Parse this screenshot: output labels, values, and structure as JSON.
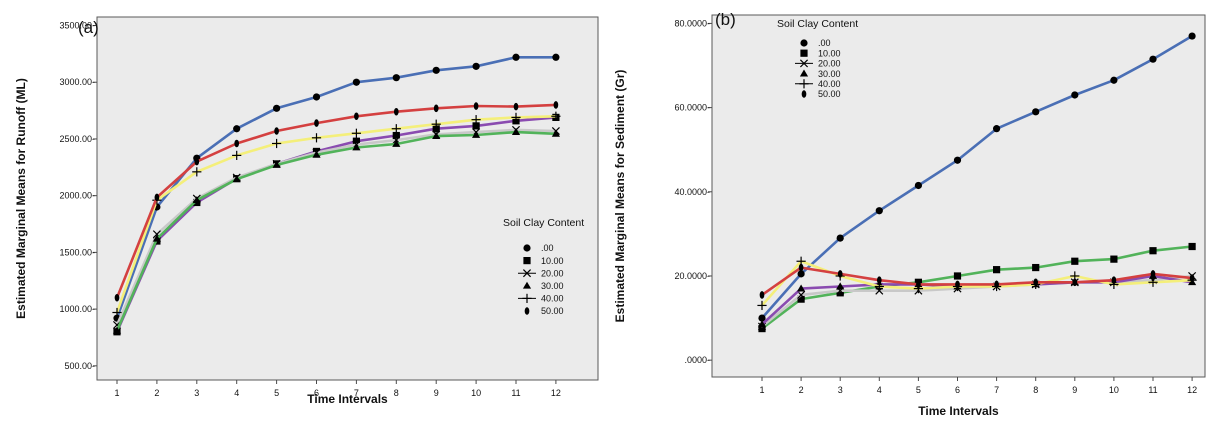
{
  "legend_labels": [
    ".00",
    "10.00",
    "20.00",
    "30.00",
    "40.00",
    "50.00"
  ],
  "chart_data": [
    {
      "type": "line",
      "panel_label": "(a)",
      "title": "",
      "xlabel": "Time Intervals",
      "ylabel": "Estimated Marginal Means for Runoff (ML)",
      "categories": [
        "1",
        "2",
        "3",
        "4",
        "5",
        "6",
        "7",
        "8",
        "9",
        "10",
        "11",
        "12"
      ],
      "ylim": [
        375,
        3575
      ],
      "yticks": [
        500,
        1000,
        1500,
        2000,
        2500,
        3000,
        3500
      ],
      "ytick_labels": [
        "500.00-",
        "1000.00-",
        "1500.00-",
        "2000.00-",
        "2500.00-",
        "3000.00-",
        "3500.00-"
      ],
      "legend_title": "Soil Clay Content",
      "legend_position": "right",
      "grid": false,
      "series": [
        {
          "name": ".00",
          "marker": "circle",
          "color": "#4a6fb5",
          "values": [
            920,
            1900,
            2330,
            2590,
            2770,
            2870,
            3000,
            3040,
            3105,
            3140,
            3220,
            3220
          ]
        },
        {
          "name": "10.00",
          "marker": "square",
          "color": "#8a4bb0",
          "values": [
            800,
            1600,
            1940,
            2150,
            2280,
            2390,
            2480,
            2530,
            2590,
            2615,
            2660,
            2690
          ]
        },
        {
          "name": "20.00",
          "marker": "x",
          "color": "#c8c8c8",
          "values": [
            860,
            1660,
            1975,
            2160,
            2280,
            2380,
            2450,
            2490,
            2540,
            2560,
            2580,
            2570
          ]
        },
        {
          "name": "30.00",
          "marker": "triangle",
          "color": "#52b35a",
          "values": [
            810,
            1620,
            1960,
            2145,
            2270,
            2360,
            2425,
            2455,
            2525,
            2535,
            2560,
            2545
          ]
        },
        {
          "name": "40.00",
          "marker": "plus",
          "color": "#f4ef7a",
          "values": [
            970,
            1960,
            2210,
            2355,
            2460,
            2510,
            2550,
            2590,
            2630,
            2670,
            2690,
            2700
          ]
        },
        {
          "name": "50.00",
          "marker": "ellipse",
          "color": "#d44040",
          "values": [
            1100,
            1985,
            2300,
            2460,
            2570,
            2640,
            2700,
            2740,
            2770,
            2790,
            2785,
            2800
          ]
        }
      ]
    },
    {
      "type": "line",
      "panel_label": "(b)",
      "title": "",
      "xlabel": "Time Intervals",
      "ylabel": "Estimated Marginal Means for Sediment (Gr)",
      "categories": [
        "1",
        "2",
        "3",
        "4",
        "5",
        "6",
        "7",
        "8",
        "9",
        "10",
        "11",
        "12"
      ],
      "ylim": [
        -4,
        82
      ],
      "yticks": [
        0,
        20,
        40,
        60,
        80
      ],
      "ytick_labels": [
        ".0000-",
        "20.0000-",
        "40.0000-",
        "60.0000-",
        "80.0000-"
      ],
      "legend_title": "Soil Clay Content",
      "legend_position": "top-left",
      "grid": false,
      "series": [
        {
          "name": ".00",
          "marker": "circle",
          "color": "#4a6fb5",
          "values": [
            10,
            20.5,
            29,
            35.5,
            41.5,
            47.5,
            55,
            59,
            63,
            66.5,
            71.5,
            77
          ]
        },
        {
          "name": "10.00",
          "marker": "square",
          "color": "#52b35a",
          "values": [
            7.5,
            14.5,
            16,
            17.5,
            18.5,
            20,
            21.5,
            22,
            23.5,
            24,
            26,
            27
          ]
        },
        {
          "name": "20.00",
          "marker": "x",
          "color": "#c8c8c8",
          "values": [
            8,
            15.5,
            16.5,
            16.5,
            16.5,
            17,
            17.5,
            18,
            18.5,
            18.5,
            19,
            20
          ]
        },
        {
          "name": "30.00",
          "marker": "triangle",
          "color": "#8a4bb0",
          "values": [
            8.5,
            17,
            17.5,
            18,
            18,
            17.5,
            18,
            18,
            18.5,
            18.5,
            20,
            18.5
          ]
        },
        {
          "name": "40.00",
          "marker": "plus",
          "color": "#f4ef7a",
          "values": [
            13,
            23.5,
            20,
            17.5,
            17,
            17.5,
            17.5,
            18,
            20,
            18,
            18.5,
            19
          ]
        },
        {
          "name": "50.00",
          "marker": "ellipse",
          "color": "#d44040",
          "values": [
            15.5,
            22,
            20.5,
            19,
            18,
            18,
            18,
            18.5,
            18.5,
            19,
            20.5,
            19.5
          ]
        }
      ]
    }
  ]
}
